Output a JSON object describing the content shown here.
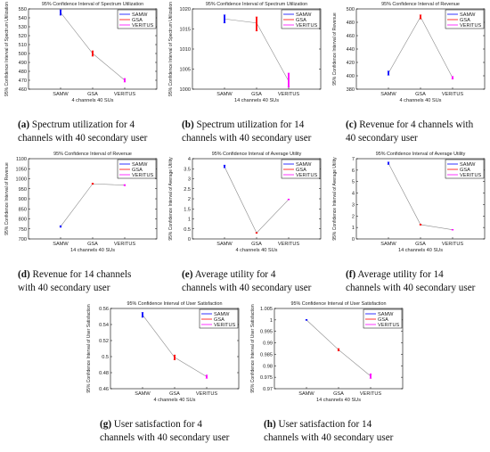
{
  "chart_data": [
    {
      "id": "a",
      "type": "line",
      "title": "95% Confidence Interval of Spectrum Utilization",
      "xlabel": "4 channels 40 SUs",
      "ylabel": "95% Confidence Interval of Spectrum Utilization",
      "categories": [
        "SAMW",
        "GSA",
        "VERITUS"
      ],
      "ylim": [
        460,
        550
      ],
      "yticks": [
        "460",
        "470",
        "480",
        "490",
        "500",
        "510",
        "520",
        "530",
        "540",
        "550"
      ],
      "legend": [
        "SAMW",
        "GSA",
        "VERITUS"
      ],
      "legend_position": "top-right",
      "series": [
        {
          "name": "SAMW",
          "color": "#0000ff",
          "mean": 546,
          "low": 543,
          "high": 549
        },
        {
          "name": "GSA",
          "color": "#ff0000",
          "mean": 500,
          "low": 497,
          "high": 503
        },
        {
          "name": "VERITUS",
          "color": "#ff00ff",
          "mean": 470,
          "low": 468,
          "high": 472
        }
      ]
    },
    {
      "id": "b",
      "type": "line",
      "title": "95% Confidence Interval of Spectrum Utilization",
      "xlabel": "14 channels 40 SUs",
      "ylabel": "95% Confidence Interval of Spectrum Utilization",
      "categories": [
        "SAMW",
        "GSA",
        "VERITUS"
      ],
      "ylim": [
        1000,
        1020
      ],
      "yticks": [
        "1000",
        "1005",
        "1010",
        "1015",
        "1020"
      ],
      "legend": [
        "SAMW",
        "GSA",
        "VERITUS"
      ],
      "legend_position": "top-right",
      "series": [
        {
          "name": "SAMW",
          "color": "#0000ff",
          "mean": 1017.5,
          "low": 1016.5,
          "high": 1018.5
        },
        {
          "name": "GSA",
          "color": "#ff0000",
          "mean": 1016.5,
          "low": 1014.5,
          "high": 1018
        },
        {
          "name": "VERITUS",
          "color": "#ff00ff",
          "mean": 1002,
          "low": 1000.5,
          "high": 1004
        }
      ]
    },
    {
      "id": "c",
      "type": "line",
      "title": "95% Confidence Interval of Revenue",
      "xlabel": "4 channels 40 SUs",
      "ylabel": "95% Confidence Interval of Revenue",
      "categories": [
        "SAMW",
        "GSA",
        "VERITUS"
      ],
      "ylim": [
        380,
        500
      ],
      "yticks": [
        "380",
        "400",
        "420",
        "440",
        "460",
        "480",
        "500"
      ],
      "legend": [
        "SAMW",
        "GSA",
        "VERITUS"
      ],
      "legend_position": "top-right",
      "series": [
        {
          "name": "SAMW",
          "color": "#0000ff",
          "mean": 404,
          "low": 401,
          "high": 407
        },
        {
          "name": "GSA",
          "color": "#ff0000",
          "mean": 488,
          "low": 485,
          "high": 491
        },
        {
          "name": "VERITUS",
          "color": "#ff00ff",
          "mean": 397,
          "low": 395,
          "high": 399
        }
      ]
    },
    {
      "id": "d",
      "type": "line",
      "title": "95% Confidence Interval of Revenue",
      "xlabel": "14 channels 40 SUs",
      "ylabel": "95% Confidence Interval of Revenue",
      "categories": [
        "SAMW",
        "GSA",
        "VERITUS"
      ],
      "ylim": [
        700,
        1100
      ],
      "yticks": [
        "700",
        "750",
        "800",
        "850",
        "900",
        "950",
        "1000",
        "1050",
        "1100"
      ],
      "legend": [
        "SAMW",
        "GSA",
        "VERITUS"
      ],
      "legend_position": "top-right",
      "series": [
        {
          "name": "SAMW",
          "color": "#0000ff",
          "mean": 762,
          "low": 758,
          "high": 766
        },
        {
          "name": "GSA",
          "color": "#ff0000",
          "mean": 975,
          "low": 972,
          "high": 978
        },
        {
          "name": "VERITUS",
          "color": "#ff00ff",
          "mean": 968,
          "low": 965,
          "high": 971
        }
      ]
    },
    {
      "id": "e",
      "type": "line",
      "title": "95% Confidence Interval of Average Utility",
      "xlabel": "4 channels 40 SUs",
      "ylabel": "95% Confidence Interval of Average Utility",
      "categories": [
        "SAMW",
        "GSA",
        "VERITUS"
      ],
      "ylim": [
        0,
        4
      ],
      "yticks": [
        "0",
        "0.5",
        "1",
        "1.5",
        "2",
        "2.5",
        "3",
        "3.5",
        "4"
      ],
      "legend": [
        "SAMW",
        "GSA",
        "VERITUS"
      ],
      "legend_position": "top-right",
      "series": [
        {
          "name": "SAMW",
          "color": "#0000ff",
          "mean": 3.6,
          "low": 3.55,
          "high": 3.68
        },
        {
          "name": "GSA",
          "color": "#ff0000",
          "mean": 0.3,
          "low": 0.28,
          "high": 0.32
        },
        {
          "name": "VERITUS",
          "color": "#ff00ff",
          "mean": 1.97,
          "low": 1.95,
          "high": 1.99
        }
      ]
    },
    {
      "id": "f",
      "type": "line",
      "title": "95% Confidence Interval of Average Utility",
      "xlabel": "14 channels 40 SUs",
      "ylabel": "95% Confidence Interval of Average Utility",
      "categories": [
        "SAMW",
        "GSA",
        "VERITUS"
      ],
      "ylim": [
        0,
        7
      ],
      "yticks": [
        "0",
        "1",
        "2",
        "3",
        "4",
        "5",
        "6",
        "7"
      ],
      "legend": [
        "SAMW",
        "GSA",
        "VERITUS"
      ],
      "legend_position": "top-right",
      "series": [
        {
          "name": "SAMW",
          "color": "#0000ff",
          "mean": 6.6,
          "low": 6.5,
          "high": 6.7
        },
        {
          "name": "GSA",
          "color": "#ff0000",
          "mean": 1.25,
          "low": 1.2,
          "high": 1.3
        },
        {
          "name": "VERITUS",
          "color": "#ff00ff",
          "mean": 0.8,
          "low": 0.77,
          "high": 0.83
        }
      ]
    },
    {
      "id": "g",
      "type": "line",
      "title": "95% Confidence Interval of User Satisfaction",
      "xlabel": "4 channels 40 SUs",
      "ylabel": "95% Confidence Interval of User Satisfaction",
      "categories": [
        "SAMW",
        "GSA",
        "VERITUS"
      ],
      "ylim": [
        0.46,
        0.56
      ],
      "yticks": [
        "0.46",
        "0.48",
        "0.5",
        "0.52",
        "0.54",
        "0.56"
      ],
      "legend": [
        "SAMW",
        "GSA",
        "VERITUS"
      ],
      "legend_position": "top-right",
      "series": [
        {
          "name": "SAMW",
          "color": "#0000ff",
          "mean": 0.552,
          "low": 0.549,
          "high": 0.555
        },
        {
          "name": "GSA",
          "color": "#ff0000",
          "mean": 0.499,
          "low": 0.496,
          "high": 0.502
        },
        {
          "name": "VERITUS",
          "color": "#ff00ff",
          "mean": 0.475,
          "low": 0.473,
          "high": 0.477
        }
      ]
    },
    {
      "id": "h",
      "type": "line",
      "title": "95% Confidence Interval of User Satisfaction",
      "xlabel": "14 channels 40 SUs",
      "ylabel": "95% Confidence Interval of User Satisfaction",
      "categories": [
        "SAMW",
        "GSA",
        "VERITUS"
      ],
      "ylim": [
        0.97,
        1.005
      ],
      "yticks": [
        "0.97",
        "0.975",
        "0.98",
        "0.985",
        "0.99",
        "0.995",
        "1",
        "1.005"
      ],
      "legend": [
        "SAMW",
        "GSA",
        "VERITUS"
      ],
      "legend_position": "top-right",
      "series": [
        {
          "name": "SAMW",
          "color": "#0000ff",
          "mean": 1.0,
          "low": 0.9998,
          "high": 1.0002
        },
        {
          "name": "GSA",
          "color": "#ff0000",
          "mean": 0.987,
          "low": 0.9865,
          "high": 0.9875
        },
        {
          "name": "VERITUS",
          "color": "#ff00ff",
          "mean": 0.9755,
          "low": 0.9745,
          "high": 0.9765
        }
      ]
    }
  ],
  "captions": [
    {
      "label": "(a)",
      "line1": " Spectrum utilization for 4",
      "line2": "channels with 40 secondary user"
    },
    {
      "label": "(b)",
      "line1": " Spectrum utilization for 14",
      "line2": "channels with 40 secondary user"
    },
    {
      "label": "(c)",
      "line1": " Revenue for 4 channels with",
      "line2": "40 secondary user"
    },
    {
      "label": "(d)",
      "line1": " Revenue for 14 channels",
      "line2": "with 40 secondary user"
    },
    {
      "label": "(e)",
      "line1": " Average utility for 4",
      "line2": "channels with 40 secondary user"
    },
    {
      "label": "(f)",
      "line1": " Average utility for 14",
      "line2": "channels with 40 secondary user"
    },
    {
      "label": "(g)",
      "line1": " User satisfaction for 4",
      "line2": "channels with 40 secondary user"
    },
    {
      "label": "(h)",
      "line1": " User satisfaction for 14",
      "line2": "channels with 40 secondary user"
    }
  ]
}
